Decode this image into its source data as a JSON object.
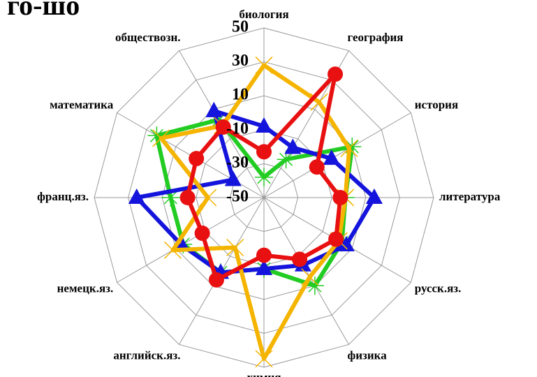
{
  "chart_data": {
    "type": "radar",
    "title": "го-шо",
    "categories": [
      "биология",
      "география",
      "история",
      "литература",
      "русск.яз.",
      "физика",
      "химия",
      "английск.яз.",
      "немецк.яз.",
      "франц.яз.",
      "математика",
      "обществозн."
    ],
    "ylim": [
      -50,
      50
    ],
    "yticks": [
      50,
      30,
      10,
      -10,
      -30,
      -50
    ],
    "grid": true,
    "series": [
      {
        "color": "#22cc22",
        "marker": "asterisk",
        "values": [
          -38,
          -24,
          10,
          -2,
          3,
          10,
          -8,
          1,
          5,
          5,
          23,
          3
        ]
      },
      {
        "color": "#1414dc",
        "marker": "triangle",
        "values": [
          -8,
          -16,
          -4,
          15,
          6,
          -4,
          -8,
          1,
          6,
          25,
          -29,
          9
        ]
      },
      {
        "color": "#f5b400",
        "marker": "x",
        "values": [
          28,
          15,
          8,
          -2,
          1,
          4,
          45,
          -16,
          12,
          -17,
          20,
          -1
        ]
      },
      {
        "color": "#e81010",
        "marker": "circle",
        "values": [
          -23,
          34,
          -14,
          -5,
          -1,
          -8,
          -16,
          6,
          -8,
          -5,
          -4,
          -2
        ]
      }
    ]
  }
}
